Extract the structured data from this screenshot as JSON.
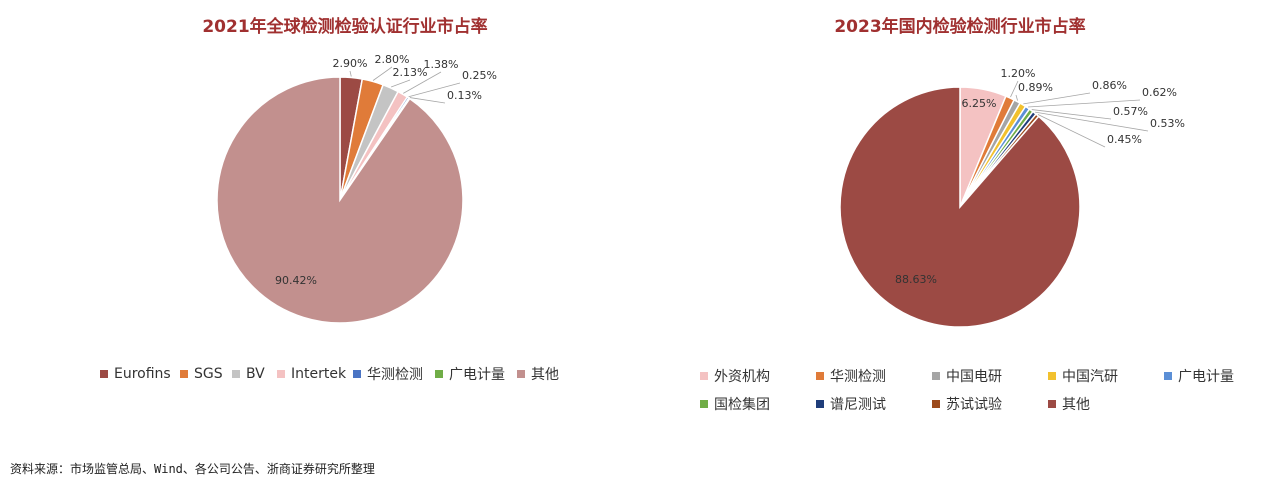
{
  "chart_data": [
    {
      "type": "pie",
      "title": "2021年全球检测检验认证行业市占率",
      "categories": [
        "Eurofins",
        "SGS",
        "BV",
        "Intertek",
        "华测检测",
        "广电计量",
        "其他"
      ],
      "values": [
        2.9,
        2.8,
        2.13,
        1.38,
        0.25,
        0.13,
        90.42
      ],
      "labels": [
        "2.90%",
        "2.80%",
        "2.13%",
        "1.38%",
        "0.25%",
        "0.13%",
        "90.42%"
      ],
      "colors": [
        "#9c4a44",
        "#e07b39",
        "#c4c4c4",
        "#f4c2c2",
        "#4a74c4",
        "#70ad47",
        "#c2908e"
      ],
      "legend_position": "bottom"
    },
    {
      "type": "pie",
      "title": "2023年国内检验检测行业市占率",
      "categories": [
        "外资机构",
        "华测检测",
        "中国电研",
        "中国汽研",
        "广电计量",
        "国检集团",
        "谱尼测试",
        "苏试试验",
        "其他"
      ],
      "values": [
        6.25,
        1.2,
        0.89,
        0.86,
        0.62,
        0.57,
        0.53,
        0.45,
        88.63
      ],
      "labels": [
        "6.25%",
        "1.20%",
        "0.89%",
        "0.86%",
        "0.62%",
        "0.57%",
        "0.53%",
        "0.45%",
        "88.63%"
      ],
      "colors": [
        "#f4c2c2",
        "#e07b39",
        "#a5a5a5",
        "#f2c12e",
        "#5b8fd6",
        "#70ad47",
        "#1f3d7a",
        "#9c4a1c",
        "#9c4a44"
      ],
      "legend_position": "bottom"
    }
  ],
  "source": "资料来源：市场监管总局、Wind、各公司公告、浙商证券研究所整理"
}
